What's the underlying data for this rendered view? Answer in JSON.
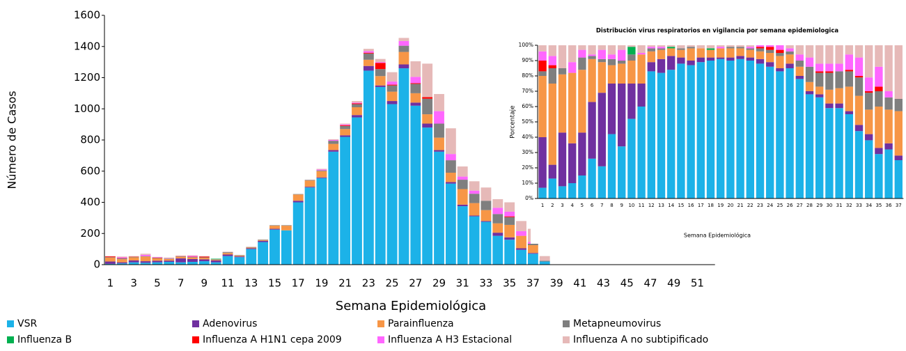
{
  "chart_data": [
    {
      "type": "stacked-bar",
      "y_label": "Número de Casos",
      "x_label": "Semana Epidemiológica",
      "categories": [
        "1",
        null,
        "3",
        null,
        "5",
        null,
        "7",
        null,
        "9",
        null,
        "11",
        null,
        "13",
        null,
        "15",
        null,
        "17",
        null,
        "19",
        null,
        "21",
        null,
        "23",
        null,
        "25",
        null,
        "27",
        null,
        "29",
        null,
        "31",
        null,
        "33",
        null,
        "35",
        null,
        "37",
        null,
        "39",
        null,
        "41",
        null,
        "43",
        null,
        "45",
        null,
        "47",
        null,
        "49",
        null,
        "51",
        null
      ],
      "ylim": [
        0,
        1600
      ],
      "yticks": [
        0,
        200,
        400,
        600,
        800,
        1000,
        1200,
        1400,
        1600
      ],
      "series": [
        {
          "name": "VSR",
          "color": "#1cb2e8",
          "values": [
            5,
            8,
            15,
            12,
            15,
            18,
            15,
            18,
            22,
            15,
            55,
            48,
            100,
            145,
            225,
            220,
            400,
            495,
            555,
            725,
            820,
            945,
            1245,
            1140,
            1030,
            1260,
            1020,
            880,
            725,
            520,
            375,
            310,
            275,
            185,
            160,
            95,
            70,
            20,
            0,
            0,
            0,
            0,
            0,
            0,
            0,
            0,
            0,
            0,
            0,
            0,
            0,
            0
          ]
        },
        {
          "name": "Adenovirus",
          "color": "#7030a0",
          "values": [
            15,
            7,
            12,
            10,
            10,
            8,
            25,
            18,
            12,
            12,
            10,
            5,
            5,
            8,
            5,
            0,
            10,
            5,
            5,
            10,
            10,
            15,
            30,
            10,
            20,
            25,
            20,
            25,
            10,
            10,
            10,
            5,
            5,
            20,
            15,
            10,
            5,
            0,
            0,
            0,
            0,
            0,
            0,
            0,
            0,
            0,
            0,
            0,
            0,
            0,
            0,
            0
          ]
        },
        {
          "name": "Parainfluenza",
          "color": "#f79646",
          "values": [
            25,
            20,
            20,
            30,
            15,
            10,
            10,
            10,
            10,
            5,
            10,
            5,
            5,
            5,
            20,
            30,
            40,
            40,
            40,
            40,
            40,
            50,
            40,
            60,
            60,
            80,
            60,
            60,
            80,
            60,
            100,
            80,
            70,
            60,
            80,
            80,
            50,
            0,
            0,
            0,
            0,
            0,
            0,
            0,
            0,
            0,
            0,
            0,
            0,
            0,
            0,
            0
          ]
        },
        {
          "name": "Metapneumovirus",
          "color": "#7f7f7f",
          "values": [
            3,
            5,
            3,
            3,
            3,
            3,
            3,
            3,
            3,
            3,
            5,
            3,
            3,
            3,
            3,
            3,
            3,
            3,
            5,
            20,
            20,
            20,
            40,
            45,
            40,
            40,
            60,
            100,
            90,
            80,
            60,
            60,
            60,
            60,
            50,
            0,
            10,
            5,
            0,
            0,
            0,
            0,
            0,
            0,
            0,
            0,
            0,
            0,
            0,
            0,
            0,
            0
          ]
        },
        {
          "name": "Influenza B",
          "color": "#00b050",
          "values": [
            0,
            0,
            0,
            0,
            0,
            0,
            0,
            0,
            0,
            3,
            0,
            0,
            0,
            0,
            0,
            0,
            0,
            0,
            0,
            0,
            0,
            0,
            0,
            0,
            0,
            0,
            0,
            0,
            0,
            0,
            0,
            0,
            0,
            0,
            0,
            0,
            0,
            0,
            0,
            0,
            0,
            0,
            0,
            0,
            0,
            0,
            0,
            0,
            0,
            0,
            0,
            0
          ]
        },
        {
          "name": "Influenza A H1N1 cepa 2009",
          "color": "#ff0000",
          "values": [
            5,
            2,
            2,
            0,
            2,
            0,
            2,
            2,
            5,
            0,
            0,
            0,
            0,
            0,
            0,
            0,
            0,
            0,
            0,
            0,
            5,
            5,
            5,
            40,
            5,
            0,
            5,
            10,
            0,
            0,
            0,
            0,
            0,
            0,
            5,
            0,
            0,
            0,
            0,
            0,
            0,
            0,
            0,
            0,
            0,
            0,
            0,
            0,
            0,
            0,
            0,
            0
          ]
        },
        {
          "name": "Influenza A H3 Estacional",
          "color": "#ff66ff",
          "values": [
            0,
            5,
            0,
            8,
            3,
            2,
            0,
            5,
            0,
            0,
            0,
            0,
            0,
            0,
            0,
            0,
            0,
            0,
            5,
            5,
            5,
            5,
            10,
            5,
            20,
            30,
            40,
            0,
            80,
            40,
            20,
            20,
            0,
            40,
            30,
            30,
            10,
            0,
            0,
            0,
            0,
            0,
            0,
            0,
            0,
            0,
            0,
            0,
            0,
            0,
            0,
            0
          ]
        },
        {
          "name": "Influenza A no subtipificado",
          "color": "#e6b9b8",
          "values": [
            2,
            5,
            3,
            7,
            2,
            5,
            3,
            4,
            3,
            0,
            3,
            0,
            2,
            0,
            0,
            0,
            0,
            2,
            5,
            5,
            5,
            10,
            15,
            20,
            60,
            20,
            100,
            215,
            110,
            165,
            65,
            60,
            85,
            55,
            60,
            65,
            85,
            30,
            0,
            0,
            0,
            0,
            0,
            0,
            0,
            0,
            0,
            0,
            0,
            0,
            0,
            0
          ]
        }
      ]
    },
    {
      "type": "stacked-bar",
      "title": "Distribución virus respiratorios en vigilancia por semana epidemiologica",
      "y_label": "Porcentaje",
      "x_label": "Semana Epidemiológica",
      "categories": [
        "1",
        "2",
        "3",
        "4",
        "5",
        "6",
        "7",
        "8",
        "9",
        "10",
        "11",
        "12",
        "13",
        "14",
        "15",
        "16",
        "17",
        "18",
        "19",
        "20",
        "21",
        "22",
        "23",
        "24",
        "25",
        "26",
        "27",
        "28",
        "29",
        "30",
        "31",
        "32",
        "33",
        "34",
        "35",
        "36",
        "37"
      ],
      "ylim": [
        0,
        100
      ],
      "yticks": [
        {
          "value": 0,
          "label": "0%"
        },
        {
          "value": 10,
          "label": "10%"
        },
        {
          "value": 20,
          "label": "20%"
        },
        {
          "value": 30,
          "label": "30%"
        },
        {
          "value": 40,
          "label": "40%"
        },
        {
          "value": 50,
          "label": "50%"
        },
        {
          "value": 60,
          "label": "60%"
        },
        {
          "value": 70,
          "label": "70%"
        },
        {
          "value": 80,
          "label": "80%"
        },
        {
          "value": 90,
          "label": "90%"
        },
        {
          "value": 100,
          "label": "100%"
        }
      ],
      "series": [
        {
          "color": "#1cb2e8",
          "values": [
            7,
            13,
            8,
            10,
            15,
            26,
            21,
            42,
            34,
            52,
            60,
            83,
            82,
            84,
            88,
            87,
            89,
            90,
            91,
            90,
            91,
            90,
            88,
            86,
            83,
            85,
            78,
            68,
            66,
            59,
            59,
            55,
            44,
            38,
            29,
            32,
            25
          ]
        },
        {
          "color": "#7030a0",
          "values": [
            33,
            9,
            35,
            26,
            28,
            37,
            48,
            33,
            41,
            23,
            15,
            6,
            9,
            9,
            4,
            3,
            3,
            2,
            1,
            2,
            2,
            2,
            3,
            3,
            2,
            3,
            2,
            2,
            2,
            3,
            3,
            2,
            4,
            4,
            4,
            4,
            3
          ]
        },
        {
          "color": "#f79646",
          "values": [
            40,
            53,
            38,
            46,
            41,
            28,
            20,
            12,
            13,
            15,
            19,
            7,
            6,
            5,
            5,
            8,
            6,
            5,
            6,
            6,
            5,
            5,
            5,
            6,
            8,
            6,
            6,
            6,
            5,
            9,
            10,
            16,
            19,
            16,
            27,
            22,
            29
          ]
        },
        {
          "color": "#7f7f7f",
          "values": [
            3,
            10,
            4,
            0,
            8,
            2,
            2,
            4,
            2,
            4,
            0,
            2,
            1,
            0,
            1,
            1,
            0,
            0,
            0,
            1,
            1,
            1,
            2,
            2,
            2,
            2,
            4,
            10,
            9,
            11,
            11,
            10,
            12,
            11,
            10,
            8,
            8
          ]
        },
        {
          "color": "#00b050",
          "values": [
            0,
            0,
            0,
            0,
            0,
            0,
            0,
            0,
            0,
            5,
            0,
            0,
            0,
            1,
            0,
            0,
            0,
            1,
            0,
            0,
            0,
            0,
            0,
            0,
            0,
            0,
            0,
            0,
            0,
            0,
            0,
            0,
            0,
            0,
            0,
            0,
            0
          ]
        },
        {
          "color": "#ff0000",
          "values": [
            7,
            2,
            0,
            0,
            0,
            0,
            0,
            0,
            0,
            0,
            0,
            0,
            0,
            0,
            0,
            0,
            0,
            0,
            0,
            0,
            0,
            0,
            1,
            2,
            2,
            0,
            0,
            0,
            1,
            1,
            0,
            1,
            1,
            1,
            3,
            0,
            0
          ]
        },
        {
          "color": "#ff66ff",
          "values": [
            6,
            6,
            0,
            7,
            5,
            1,
            6,
            3,
            7,
            0,
            1,
            1,
            1,
            0,
            0,
            0,
            0,
            0,
            1,
            0,
            0,
            1,
            1,
            1,
            3,
            2,
            4,
            6,
            5,
            5,
            5,
            10,
            12,
            9,
            13,
            4,
            0
          ]
        },
        {
          "color": "#e6b9b8",
          "values": [
            4,
            7,
            15,
            11,
            3,
            6,
            3,
            6,
            3,
            1,
            5,
            1,
            1,
            1,
            2,
            1,
            2,
            2,
            1,
            1,
            1,
            1,
            0,
            0,
            0,
            2,
            6,
            8,
            12,
            12,
            12,
            6,
            8,
            21,
            14,
            30,
            35
          ]
        }
      ]
    }
  ]
}
